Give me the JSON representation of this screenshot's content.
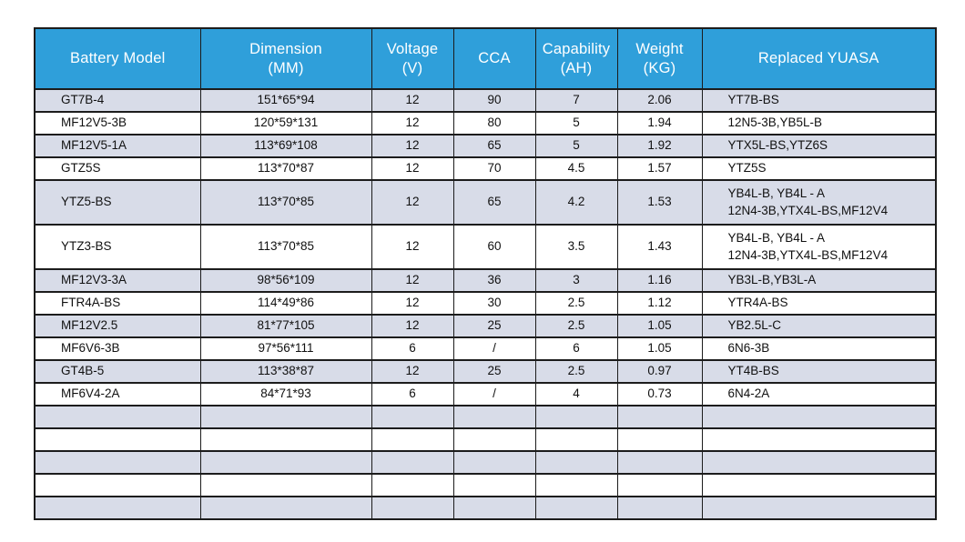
{
  "colors": {
    "header-bg": "#2F9FDA",
    "header-text": "#FFFFFF",
    "row-odd": "#D8DCE8",
    "row-even": "#FFFFFF",
    "border": "#1C1C1C",
    "cell-text": "#111111",
    "page-bg": "#FFFFFF"
  },
  "table": {
    "header": {
      "columns": [
        "Battery Model",
        "Dimension\n(MM)",
        "Voltage\n(V)",
        "CCA",
        "Capability\n(AH)",
        "Weight\n(KG)",
        "Replaced YUASA"
      ]
    },
    "rows": [
      [
        "GT7B-4",
        "151*65*94",
        "12",
        "90",
        "7",
        "2.06",
        "YT7B-BS"
      ],
      [
        "MF12V5-3B",
        "120*59*131",
        "12",
        "80",
        "5",
        "1.94",
        "12N5-3B,YB5L-B"
      ],
      [
        "MF12V5-1A",
        "113*69*108",
        "12",
        "65",
        "5",
        "1.92",
        "YTX5L-BS,YTZ6S"
      ],
      [
        "GTZ5S",
        "113*70*87",
        "12",
        "70",
        "4.5",
        "1.57",
        "YTZ5S"
      ],
      [
        "YTZ5-BS",
        "113*70*85",
        "12",
        "65",
        "4.2",
        "1.53",
        "YB4L-B, YB4L - A\n12N4-3B,YTX4L-BS,MF12V4"
      ],
      [
        "YTZ3-BS",
        "113*70*85",
        "12",
        "60",
        "3.5",
        "1.43",
        "YB4L-B, YB4L - A\n12N4-3B,YTX4L-BS,MF12V4"
      ],
      [
        "MF12V3-3A",
        "98*56*109",
        "12",
        "36",
        "3",
        "1.16",
        "YB3L-B,YB3L-A"
      ],
      [
        "FTR4A-BS",
        "114*49*86",
        "12",
        "30",
        "2.5",
        "1.12",
        "YTR4A-BS"
      ],
      [
        "MF12V2.5",
        "81*77*105",
        "12",
        "25",
        "2.5",
        "1.05",
        "YB2.5L-C"
      ],
      [
        "MF6V6-3B",
        "97*56*111",
        "6",
        "/",
        "6",
        "1.05",
        "6N6-3B"
      ],
      [
        "GT4B-5",
        "113*38*87",
        "12",
        "25",
        "2.5",
        "0.97",
        "YT4B-BS"
      ],
      [
        "MF6V4-2A",
        "84*71*93",
        "6",
        "/",
        "4",
        "0.73",
        "6N4-2A"
      ]
    ],
    "empty_row_count": 5
  },
  "chart_data": {
    "type": "table",
    "title": "",
    "columns": [
      "Battery Model",
      "Dimension (MM)",
      "Voltage (V)",
      "CCA",
      "Capability (AH)",
      "Weight (KG)",
      "Replaced YUASA"
    ],
    "rows": [
      [
        "GT7B-4",
        "151*65*94",
        "12",
        "90",
        "7",
        "2.06",
        "YT7B-BS"
      ],
      [
        "MF12V5-3B",
        "120*59*131",
        "12",
        "80",
        "5",
        "1.94",
        "12N5-3B,YB5L-B"
      ],
      [
        "MF12V5-1A",
        "113*69*108",
        "12",
        "65",
        "5",
        "1.92",
        "YTX5L-BS,YTZ6S"
      ],
      [
        "GTZ5S",
        "113*70*87",
        "12",
        "70",
        "4.5",
        "1.57",
        "YTZ5S"
      ],
      [
        "YTZ5-BS",
        "113*70*85",
        "12",
        "65",
        "4.2",
        "1.53",
        "YB4L-B, YB4L - A 12N4-3B,YTX4L-BS,MF12V4"
      ],
      [
        "YTZ3-BS",
        "113*70*85",
        "12",
        "60",
        "3.5",
        "1.43",
        "YB4L-B, YB4L - A 12N4-3B,YTX4L-BS,MF12V4"
      ],
      [
        "MF12V3-3A",
        "98*56*109",
        "12",
        "36",
        "3",
        "1.16",
        "YB3L-B,YB3L-A"
      ],
      [
        "FTR4A-BS",
        "114*49*86",
        "12",
        "30",
        "2.5",
        "1.12",
        "YTR4A-BS"
      ],
      [
        "MF12V2.5",
        "81*77*105",
        "12",
        "25",
        "2.5",
        "1.05",
        "YB2.5L-C"
      ],
      [
        "MF6V6-3B",
        "97*56*111",
        "6",
        "/",
        "6",
        "1.05",
        "6N6-3B"
      ],
      [
        "GT4B-5",
        "113*38*87",
        "12",
        "25",
        "2.5",
        "0.97",
        "YT4B-BS"
      ],
      [
        "MF6V4-2A",
        "84*71*93",
        "6",
        "/",
        "4",
        "0.73",
        "6N4-2A"
      ]
    ],
    "empty_trailing_rows": 5
  }
}
